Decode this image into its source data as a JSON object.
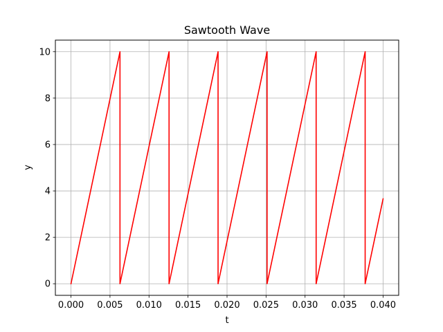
{
  "chart_data": {
    "type": "line",
    "title": "Sawtooth Wave",
    "xlabel": "t",
    "ylabel": "y",
    "xlim": [
      -0.002,
      0.042
    ],
    "ylim": [
      -0.5,
      10.5
    ],
    "grid": true,
    "xticks": [
      0.0,
      0.005,
      0.01,
      0.015,
      0.02,
      0.025,
      0.03,
      0.035,
      0.04
    ],
    "xtick_labels": [
      "0.000",
      "0.005",
      "0.010",
      "0.015",
      "0.020",
      "0.025",
      "0.030",
      "0.035",
      "0.040"
    ],
    "yticks": [
      0,
      2,
      4,
      6,
      8,
      10
    ],
    "ytick_labels": [
      "0",
      "2",
      "4",
      "6",
      "8",
      "10"
    ],
    "series": [
      {
        "color": "#ff0000",
        "x": [
          0.0,
          0.00628,
          0.00628,
          0.01257,
          0.01257,
          0.01885,
          0.01885,
          0.02513,
          0.02513,
          0.03142,
          0.03142,
          0.0377,
          0.0377,
          0.04
        ],
        "y": [
          0,
          10,
          0,
          10,
          0,
          10,
          0,
          10,
          0,
          10,
          0,
          10,
          0,
          3.66
        ]
      }
    ]
  }
}
